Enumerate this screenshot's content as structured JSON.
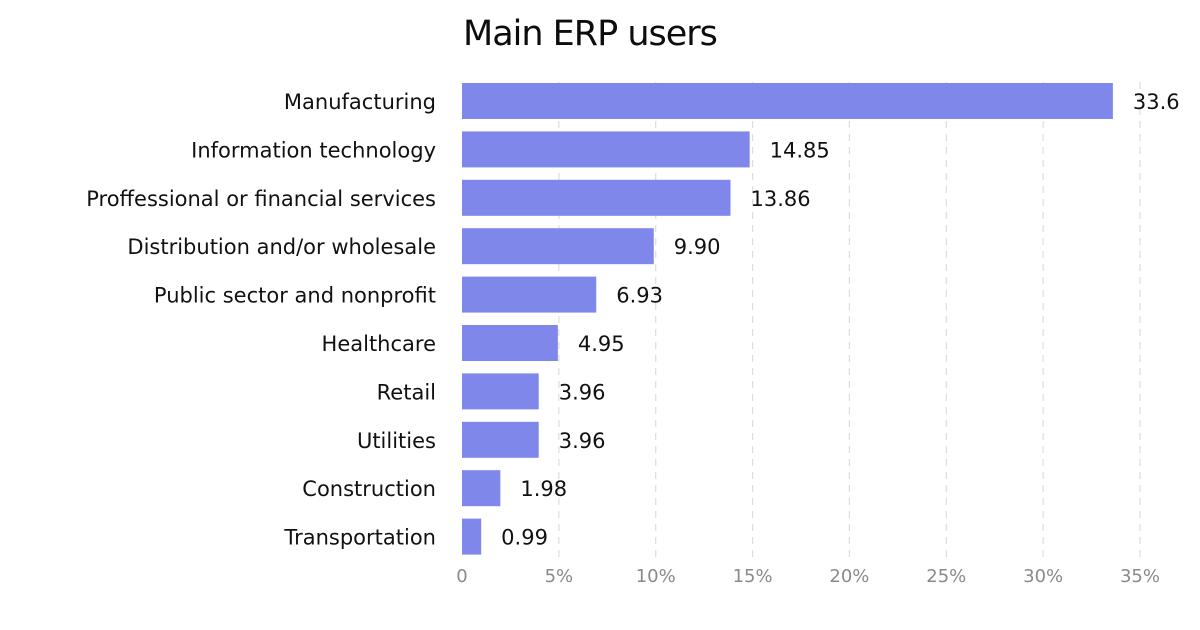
{
  "chart_data": {
    "type": "bar",
    "orientation": "horizontal",
    "title": "Main ERP users",
    "categories": [
      "Manufacturing",
      "Information technology",
      "Proffessional or financial services",
      "Distribution and/or wholesale",
      "Public sector and nonprofit",
      "Healthcare",
      "Retail",
      "Utilities",
      "Construction",
      "Transportation"
    ],
    "values": [
      33.6,
      14.85,
      13.86,
      9.9,
      6.93,
      4.95,
      3.96,
      3.96,
      1.98,
      0.99
    ],
    "value_labels": [
      "33.6",
      "14.85",
      "13.86",
      "9.90",
      "6.93",
      "4.95",
      "3.96",
      "3.96",
      "1.98",
      "0.99"
    ],
    "x_ticks": [
      0,
      5,
      10,
      15,
      20,
      25,
      30,
      35
    ],
    "x_tick_labels": [
      "0",
      "5%",
      "10%",
      "15%",
      "20%",
      "25%",
      "30%",
      "35%"
    ],
    "xlim": [
      0,
      35
    ],
    "xlabel": "",
    "ylabel": "",
    "grid": "vertical dashed",
    "legend": "none",
    "colors": {
      "bar": "#7f88ea",
      "text": "#111111",
      "tick": "#8a8a8a",
      "grid": "#dddddd"
    }
  }
}
